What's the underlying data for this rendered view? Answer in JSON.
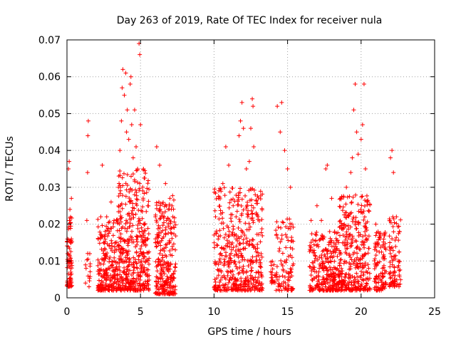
{
  "chart_data": {
    "type": "scatter",
    "title": "Day 263 of 2019, Rate Of TEC Index for receiver nula",
    "xlabel": "GPS time / hours",
    "ylabel": "ROTI / TECUs",
    "xlim": [
      0,
      25
    ],
    "ylim": [
      0,
      0.07
    ],
    "xticks": [
      0,
      5,
      10,
      15,
      20,
      25
    ],
    "yticks": [
      0,
      0.01,
      0.02,
      0.03,
      0.04,
      0.05,
      0.06,
      0.07
    ],
    "xtick_labels": [
      "0",
      "5",
      "10",
      "15",
      "20",
      "25"
    ],
    "ytick_labels": [
      "0",
      "0.01",
      "0.02",
      "0.03",
      "0.04",
      "0.05",
      "0.06",
      "0.07"
    ],
    "grid": true,
    "marker": "+",
    "color": "#ff0000",
    "series": [
      {
        "points": [
          [
            0.05,
            0.012
          ],
          [
            0.1,
            0.035
          ],
          [
            0.15,
            0.037
          ],
          [
            0.2,
            0.024
          ],
          [
            0.22,
            0.008
          ],
          [
            0.25,
            0.015
          ],
          [
            0.3,
            0.027
          ],
          [
            1.3,
            0.008
          ],
          [
            1.35,
            0.021
          ],
          [
            1.4,
            0.034
          ],
          [
            1.42,
            0.044
          ],
          [
            1.45,
            0.048
          ],
          [
            1.5,
            0.003
          ],
          [
            1.55,
            0.012
          ],
          [
            2.3,
            0.022
          ],
          [
            2.4,
            0.036
          ],
          [
            2.5,
            0.015
          ],
          [
            2.7,
            0.022
          ],
          [
            2.9,
            0.018
          ],
          [
            3.0,
            0.026
          ],
          [
            3.2,
            0.021
          ],
          [
            3.3,
            0.015
          ],
          [
            3.5,
            0.03
          ],
          [
            3.6,
            0.04
          ],
          [
            3.7,
            0.048
          ],
          [
            3.75,
            0.057
          ],
          [
            3.8,
            0.062
          ],
          [
            3.9,
            0.055
          ],
          [
            4.0,
            0.061
          ],
          [
            4.05,
            0.045
          ],
          [
            4.1,
            0.051
          ],
          [
            4.2,
            0.043
          ],
          [
            4.3,
            0.058
          ],
          [
            4.35,
            0.06
          ],
          [
            4.4,
            0.047
          ],
          [
            4.5,
            0.038
          ],
          [
            4.6,
            0.051
          ],
          [
            4.7,
            0.041
          ],
          [
            4.8,
            0.035
          ],
          [
            4.9,
            0.069
          ],
          [
            4.95,
            0.066
          ],
          [
            5.0,
            0.047
          ],
          [
            5.2,
            0.035
          ],
          [
            5.5,
            0.025
          ],
          [
            6.1,
            0.041
          ],
          [
            6.3,
            0.036
          ],
          [
            6.5,
            0.023
          ],
          [
            6.7,
            0.031
          ],
          [
            7.0,
            0.027
          ],
          [
            7.2,
            0.022
          ],
          [
            10.1,
            0.022
          ],
          [
            10.3,
            0.027
          ],
          [
            10.6,
            0.031
          ],
          [
            10.8,
            0.041
          ],
          [
            11.0,
            0.036
          ],
          [
            11.3,
            0.025
          ],
          [
            11.5,
            0.022
          ],
          [
            11.7,
            0.044
          ],
          [
            11.8,
            0.048
          ],
          [
            11.9,
            0.053
          ],
          [
            12.0,
            0.046
          ],
          [
            12.2,
            0.035
          ],
          [
            12.4,
            0.037
          ],
          [
            12.5,
            0.046
          ],
          [
            12.6,
            0.054
          ],
          [
            12.65,
            0.052
          ],
          [
            12.7,
            0.041
          ],
          [
            12.8,
            0.028
          ],
          [
            13.0,
            0.022
          ],
          [
            13.2,
            0.012
          ],
          [
            14.3,
            0.052
          ],
          [
            14.5,
            0.045
          ],
          [
            14.6,
            0.053
          ],
          [
            14.8,
            0.04
          ],
          [
            15.0,
            0.035
          ],
          [
            15.2,
            0.03
          ],
          [
            15.3,
            0.02
          ],
          [
            16.6,
            0.021
          ],
          [
            17.0,
            0.025
          ],
          [
            17.3,
            0.021
          ],
          [
            17.6,
            0.035
          ],
          [
            17.7,
            0.036
          ],
          [
            18.0,
            0.027
          ],
          [
            18.2,
            0.018
          ],
          [
            18.6,
            0.027
          ],
          [
            19.0,
            0.03
          ],
          [
            19.3,
            0.034
          ],
          [
            19.4,
            0.038
          ],
          [
            19.5,
            0.051
          ],
          [
            19.6,
            0.058
          ],
          [
            19.7,
            0.045
          ],
          [
            19.8,
            0.039
          ],
          [
            20.0,
            0.043
          ],
          [
            20.1,
            0.047
          ],
          [
            20.2,
            0.058
          ],
          [
            20.3,
            0.035
          ],
          [
            20.4,
            0.026
          ],
          [
            21.0,
            0.02
          ],
          [
            21.3,
            0.016
          ],
          [
            21.5,
            0.011
          ],
          [
            22.0,
            0.038
          ],
          [
            22.1,
            0.04
          ],
          [
            22.2,
            0.034
          ],
          [
            22.4,
            0.022
          ],
          [
            22.6,
            0.018
          ]
        ],
        "clusters": [
          {
            "x_range": [
              0.0,
              0.35
            ],
            "y_range": [
              0.003,
              0.022
            ],
            "count": 80
          },
          {
            "x_range": [
              1.25,
              1.6
            ],
            "y_range": [
              0.004,
              0.014
            ],
            "count": 12
          },
          {
            "x_range": [
              2.1,
              3.5
            ],
            "y_range": [
              0.002,
              0.022
            ],
            "count": 220
          },
          {
            "x_range": [
              3.5,
              5.6
            ],
            "y_range": [
              0.002,
              0.035
            ],
            "count": 420
          },
          {
            "x_range": [
              6.0,
              7.4
            ],
            "y_range": [
              0.001,
              0.028
            ],
            "count": 260
          },
          {
            "x_range": [
              10.0,
              13.3
            ],
            "y_range": [
              0.002,
              0.03
            ],
            "count": 460
          },
          {
            "x_range": [
              13.8,
              14.3
            ],
            "y_range": [
              0.004,
              0.01
            ],
            "count": 20
          },
          {
            "x_range": [
              14.2,
              15.4
            ],
            "y_range": [
              0.002,
              0.022
            ],
            "count": 100
          },
          {
            "x_range": [
              16.5,
              18.5
            ],
            "y_range": [
              0.002,
              0.018
            ],
            "count": 280
          },
          {
            "x_range": [
              18.5,
              20.6
            ],
            "y_range": [
              0.002,
              0.028
            ],
            "count": 340
          },
          {
            "x_range": [
              20.9,
              21.7
            ],
            "y_range": [
              0.002,
              0.018
            ],
            "count": 110
          },
          {
            "x_range": [
              21.9,
              22.7
            ],
            "y_range": [
              0.003,
              0.022
            ],
            "count": 90
          }
        ]
      }
    ]
  }
}
